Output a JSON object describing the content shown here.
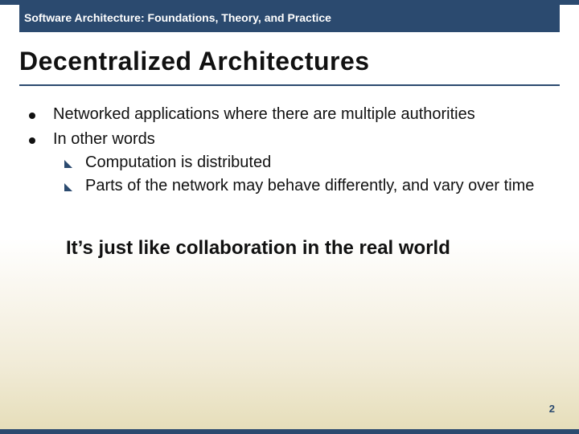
{
  "colors": {
    "band": "#2b4a6f",
    "text": "#111111",
    "bg_top": "#ffffff",
    "bg_bottom": "#e6deba"
  },
  "typography": {
    "header_fontsize": 14,
    "title_fontsize": 32,
    "body_fontsize": 20,
    "callout_fontsize": 24,
    "pagenum_fontsize": 13,
    "font_family": "Verdana, Arial, sans-serif"
  },
  "header": {
    "text": "Software Architecture: Foundations, Theory, and Practice"
  },
  "title": "Decentralized Architectures",
  "bullets": [
    {
      "text": "Networked applications where there are multiple authorities",
      "sub": []
    },
    {
      "text": "In other words",
      "sub": [
        "Computation is distributed",
        "Parts of the network may behave differently, and vary over time"
      ]
    }
  ],
  "callout": "It’s just like collaboration in the real world",
  "page_number": "2"
}
